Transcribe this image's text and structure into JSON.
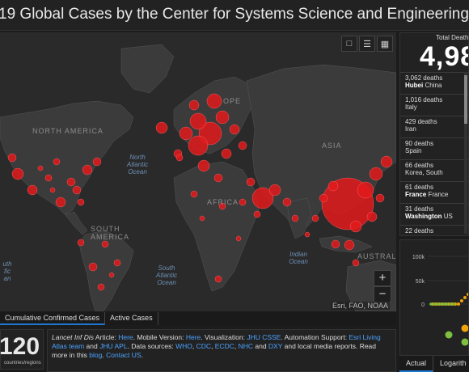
{
  "header": {
    "title": "19 Global Cases by the Center for Systems Science and Engineering (CSSE) at Johns Ho"
  },
  "map": {
    "tools": [
      "bookmark-icon",
      "list-icon",
      "grid-icon"
    ],
    "zoom_in": "+",
    "zoom_out": "−",
    "attribution": "Esri, FAO, NOAA",
    "labels": {
      "north_america": "NORTH AMERICA",
      "europe": "OPE",
      "africa": "AFRICA",
      "asia": "ASIA",
      "south_america": "SOUTH AMERICA",
      "australia": "AUSTRAL",
      "north_atlantic": "North Atlantic Ocean",
      "south_atlantic": "South Atlantic Ocean",
      "indian": "Indian Ocean",
      "south_pacific": "uth fic an"
    },
    "bubble_color": "#e31a1c"
  },
  "map_tabs": {
    "cumulative": "Cumulative Confirmed Cases",
    "active": "Active Cases"
  },
  "countries": {
    "count": "120",
    "label": "countries/regions"
  },
  "info": {
    "prefix_italic": "Lancet Inf Dis",
    "article": " Article: ",
    "here1": "Here",
    "mobile": ". Mobile Version: ",
    "here2": "Here",
    "viz": ". Visualization: ",
    "jhu": "JHU CSSE",
    "auto": ". Automation Support: ",
    "esri": "Esri Living Atlas team",
    "and": " and ",
    "apl": "JHU APL",
    "sources": ". Data sources: ",
    "who": "WHO",
    "cdc": "CDC",
    "ecdc": "ECDC",
    "nhc": "NHC",
    "dxy": "DXY",
    "media": " and local media reports. Read more in this ",
    "blog": "blog",
    "contact": "Contact US",
    "comma": ", ",
    "dot": ". "
  },
  "deaths": {
    "title": "Total Deaths",
    "total": "4,98",
    "items": [
      {
        "count": "3,062 deaths",
        "bold": "Hubei",
        "place": " China"
      },
      {
        "count": "1,016 deaths",
        "bold": "",
        "place": "Italy"
      },
      {
        "count": "429 deaths",
        "bold": "",
        "place": "Iran"
      },
      {
        "count": "90 deaths",
        "bold": "",
        "place": "Spain"
      },
      {
        "count": "66 deaths",
        "bold": "",
        "place": "Korea, South"
      },
      {
        "count": "61 deaths",
        "bold": "France",
        "place": " France"
      },
      {
        "count": "31 deaths",
        "bold": "Washington",
        "place": " US"
      },
      {
        "count": "22 deaths",
        "bold": "",
        "place": ""
      }
    ]
  },
  "chart_data": {
    "type": "line",
    "y_ticks": [
      "100k",
      "50k",
      "0"
    ],
    "ylim": [
      0,
      100000
    ],
    "series_colors": [
      "#f0a30a",
      "#7fbf3f"
    ]
  },
  "chart_tabs": {
    "actual": "Actual",
    "log": "Logarith"
  }
}
